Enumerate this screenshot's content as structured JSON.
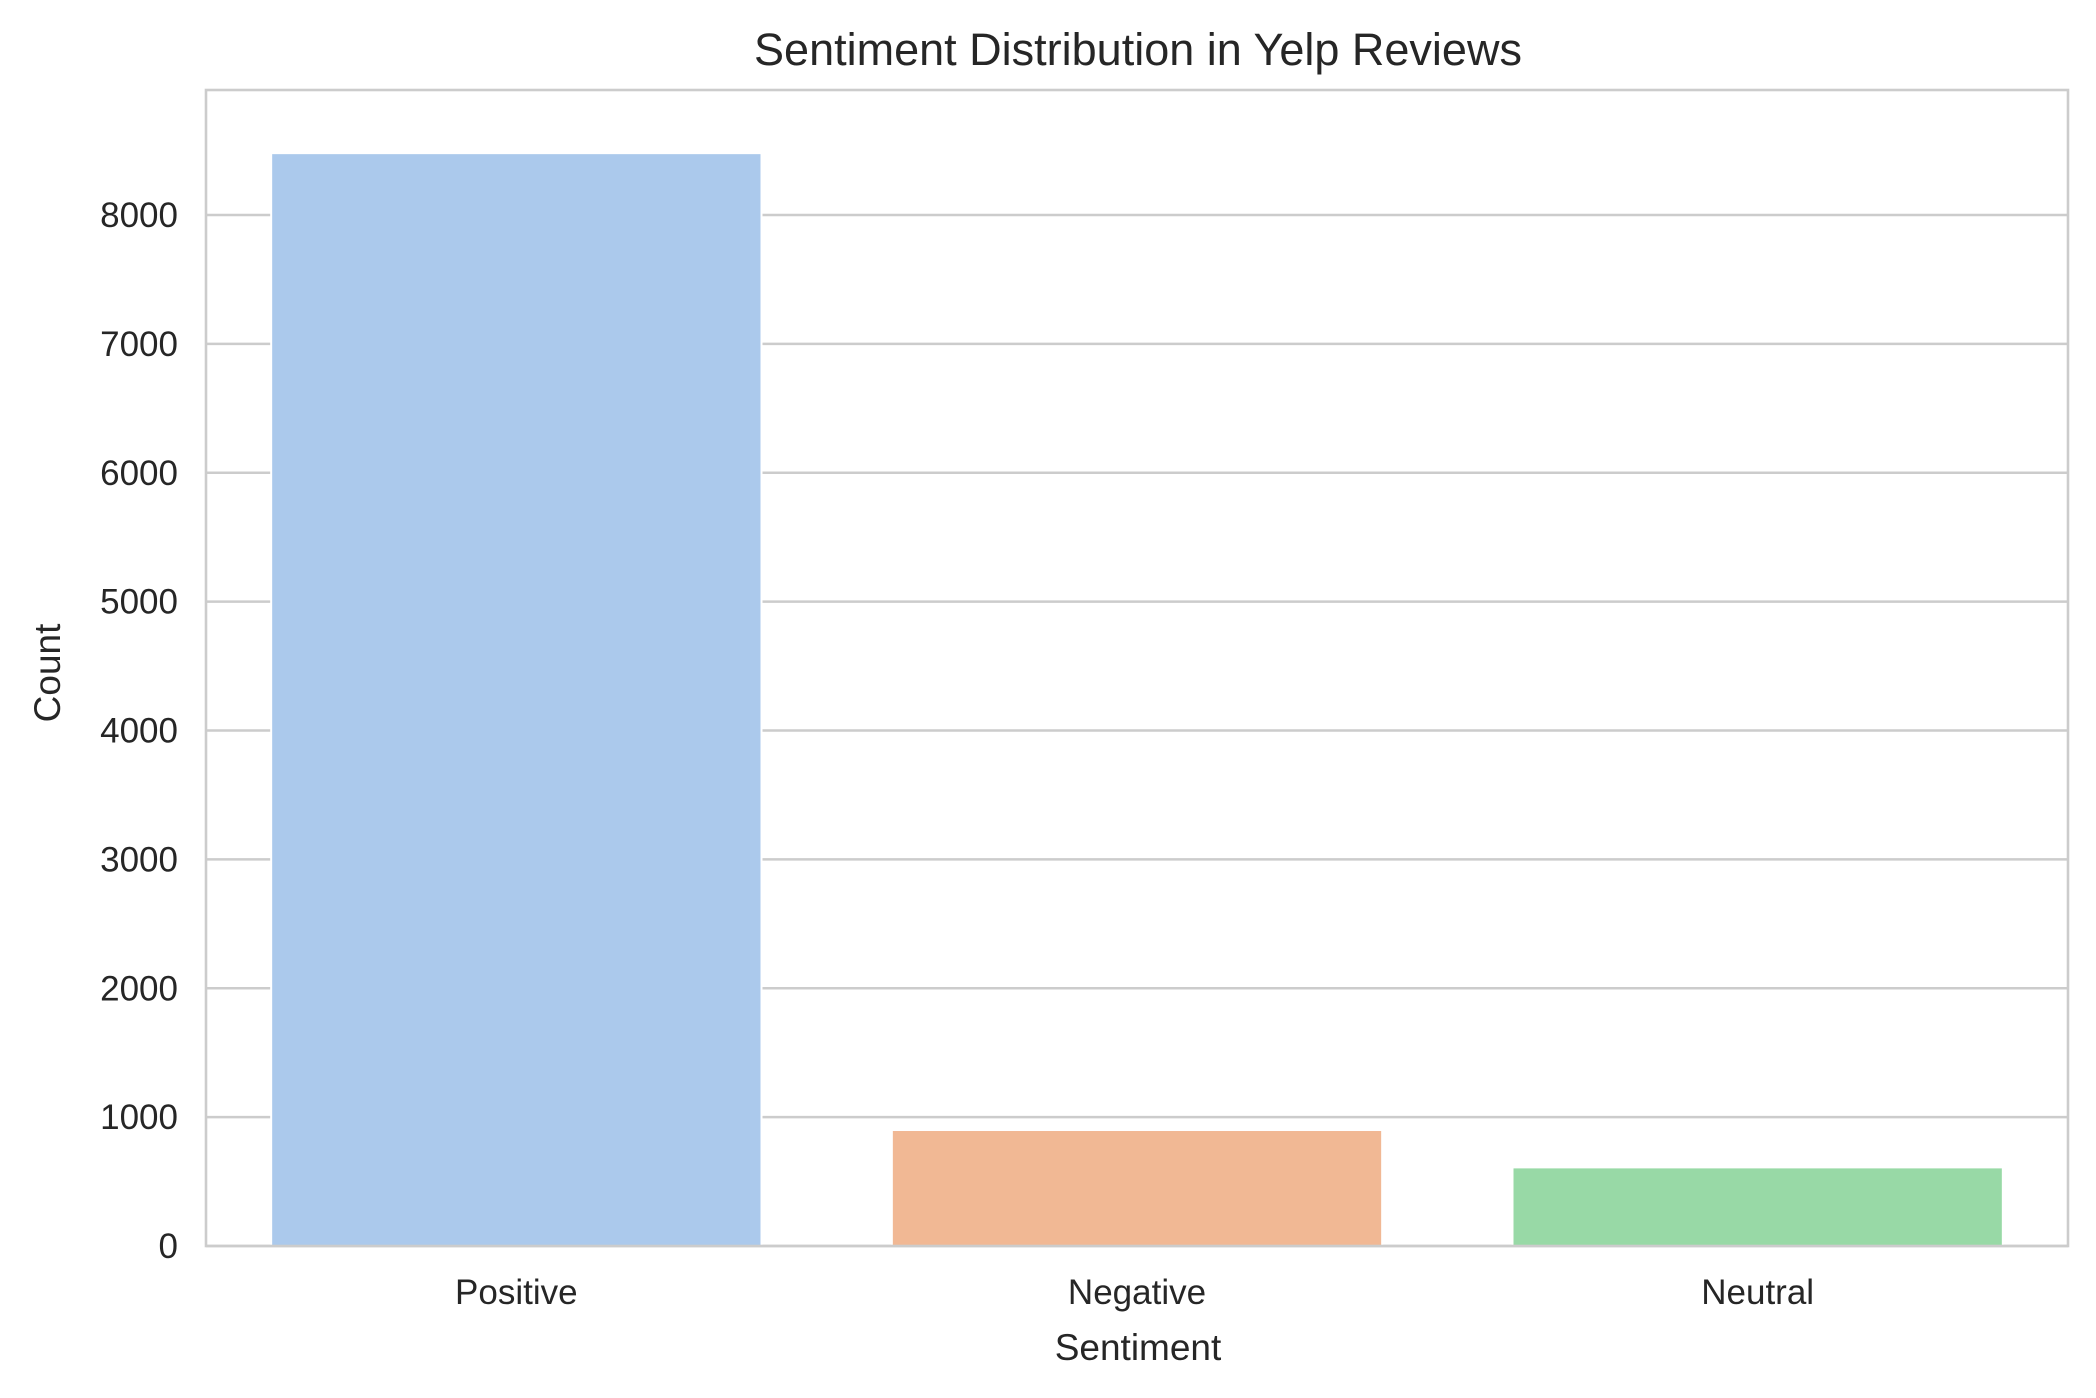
{
  "chart_data": {
    "type": "bar",
    "title": "Sentiment Distribution in Yelp Reviews",
    "xlabel": "Sentiment",
    "ylabel": "Count",
    "categories": [
      "Positive",
      "Negative",
      "Neutral"
    ],
    "values": [
      8480,
      900,
      610
    ],
    "colors": [
      "#abc9ec",
      "#f1b894",
      "#98d9a6"
    ],
    "ylim": [
      0,
      8970
    ],
    "yticks": [
      0,
      1000,
      2000,
      3000,
      4000,
      5000,
      6000,
      7000,
      8000
    ],
    "grid": true,
    "grid_axis": "y",
    "legend": "none"
  }
}
